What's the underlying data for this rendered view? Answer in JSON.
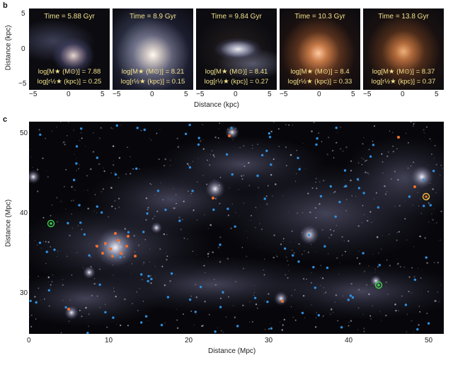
{
  "panel_b": {
    "letter": "b",
    "ylabel": "Distance (kpc)",
    "xlabel": "Distance (kpc)",
    "x_ticks": [
      "−5",
      "0",
      "5"
    ],
    "y_ticks": [
      "5",
      "0",
      "−5"
    ],
    "snapshots": [
      {
        "time": "Time = 5.88 Gyr",
        "mass": "log[M★ (M⊙)] = 7.88",
        "radius": "log[r½★ (kpc)] = 0.25"
      },
      {
        "time": "Time = 8.9 Gyr",
        "mass": "log[M★ (M⊙)] = 8.21",
        "radius": "log[r½★ (kpc)] = 0.15"
      },
      {
        "time": "Time = 9.84 Gyr",
        "mass": "log[M★ (M⊙)] = 8.41",
        "radius": "log[r½★ (kpc)] = 0.27"
      },
      {
        "time": "Time = 10.3 Gyr",
        "mass": "log[M★ (M⊙)] = 8.4",
        "radius": "log[r½★ (kpc)] = 0.33"
      },
      {
        "time": "Time = 13.8 Gyr",
        "mass": "log[M★ (M⊙)] = 8.37",
        "radius": "log[r½★ (kpc)] = 0.37"
      }
    ]
  },
  "panel_c": {
    "letter": "c",
    "ylabel": "Distance (Mpc)",
    "xlabel": "Distance (Mpc)",
    "x_ticks": [
      "0",
      "10",
      "20",
      "30",
      "40",
      "50"
    ],
    "y_ticks": [
      "50",
      "40",
      "30"
    ],
    "colors": {
      "blue_marker": "#2e8fe0",
      "orange_marker": "#f0702a",
      "green_circle": "#3fd24a",
      "yellow_circle": "#f5c23a"
    }
  }
}
